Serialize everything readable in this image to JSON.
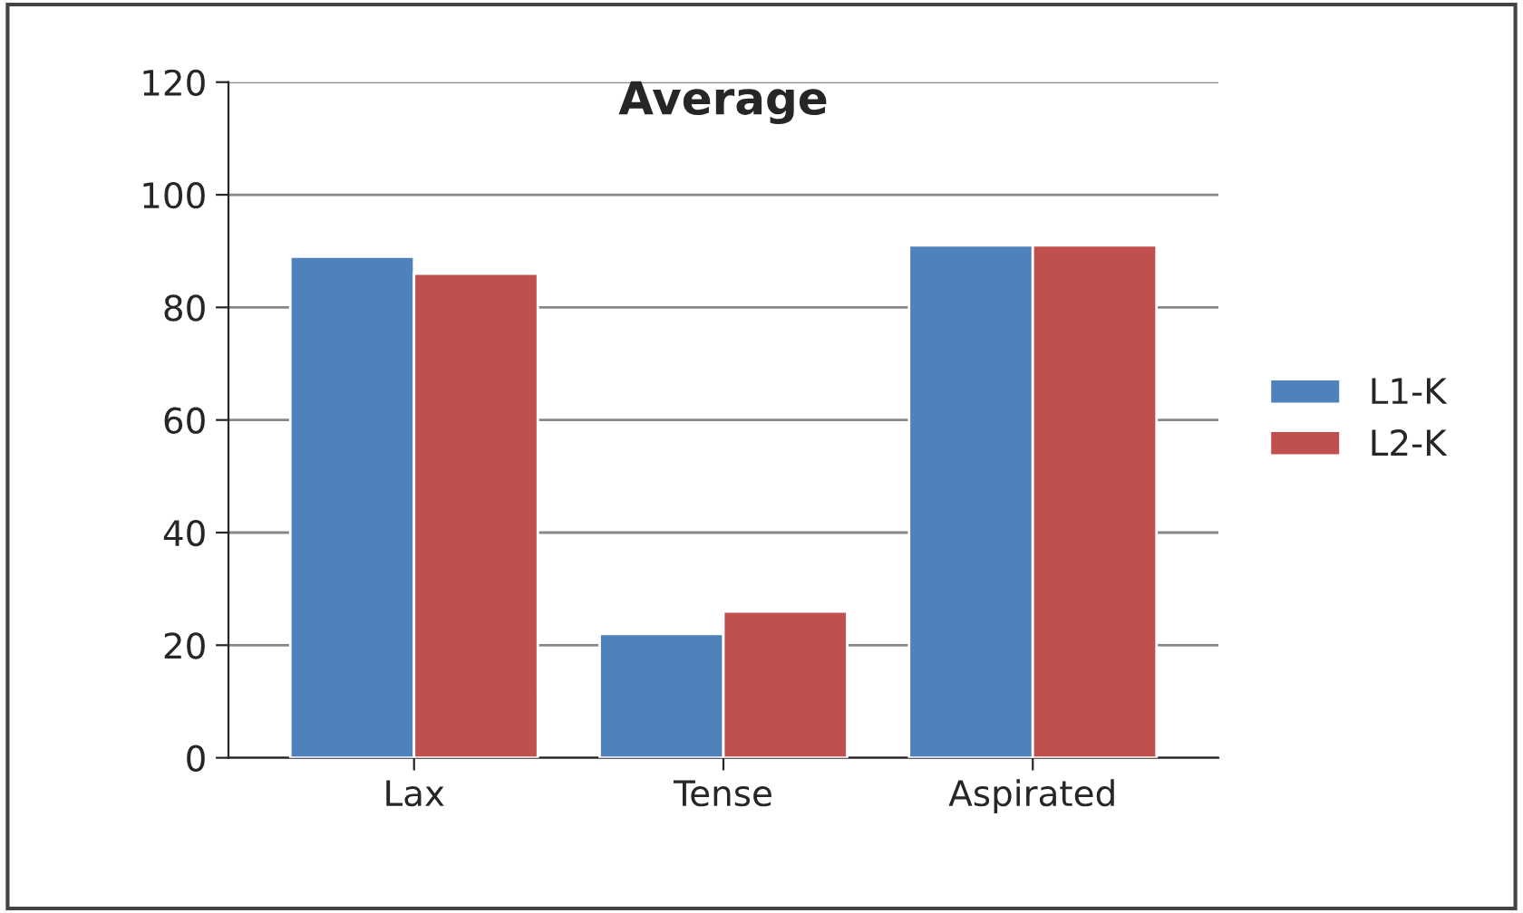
{
  "chart_data": {
    "type": "bar",
    "title": "Average",
    "categories": [
      "Lax",
      "Tense",
      "Aspirated"
    ],
    "series": [
      {
        "name": "L1-K",
        "color": "#4f81bd",
        "values": [
          89,
          22,
          91
        ]
      },
      {
        "name": "L2-K",
        "color": "#c0504d",
        "values": [
          86,
          26,
          91
        ]
      }
    ],
    "ylim": [
      0,
      120
    ],
    "yticks": [
      0,
      20,
      40,
      60,
      80,
      100,
      120
    ],
    "grid": "y",
    "legend": "right"
  }
}
